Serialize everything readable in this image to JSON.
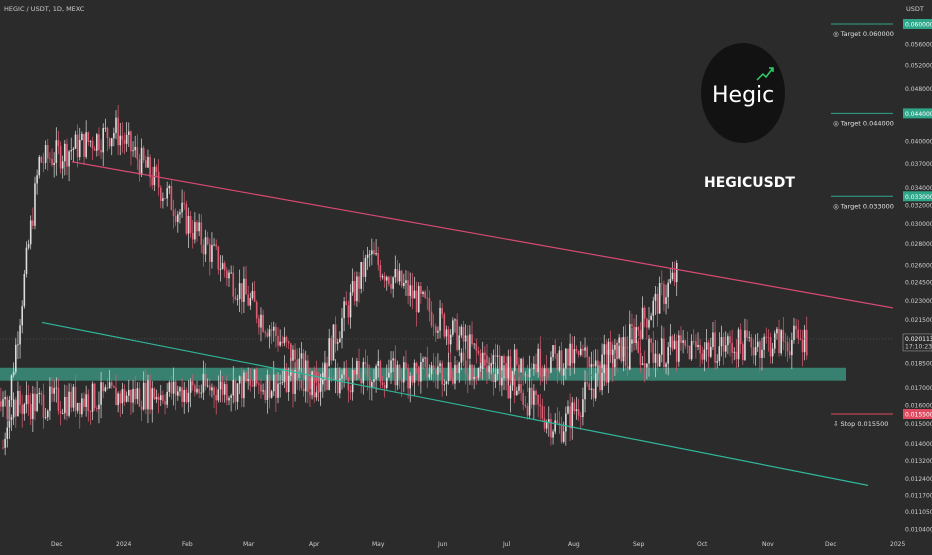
{
  "header": {
    "symbol_line": "HEGIC / USDT, 1D, MEXC",
    "currency": "USDT"
  },
  "colors": {
    "background": "#2b2b2b",
    "up": "#dcdcdc",
    "down": "#e05c72",
    "upper_trendline": "#d94a72",
    "lower_trendline": "#2fb79a",
    "support_zone": "#3b8f7c",
    "target_label": "#2fa68a",
    "stop_label": "#e04a60",
    "axis_text": "#d0d0d0"
  },
  "logo": {
    "text": "Hegic",
    "caption": "HEGICUSDT"
  },
  "chart_data": {
    "type": "candlestick",
    "title": "HEGIC / USDT, 1D, MEXC",
    "y_scale": "log",
    "ylim": [
      0.0103,
      0.061
    ],
    "price_ticks": [
      "0.060000",
      "0.056000",
      "0.052000",
      "0.048000",
      "0.044000",
      "0.040000",
      "0.037000",
      "0.034000",
      "0.032000",
      "0.030000",
      "0.028000",
      "0.026000",
      "0.024500",
      "0.023000",
      "0.021500",
      "0.020000",
      "0.018500",
      "0.017000",
      "0.016000",
      "0.015000",
      "0.014000",
      "0.013200",
      "0.012400",
      "0.011700",
      "0.011050",
      "0.010400"
    ],
    "x_labels": [
      "Dec",
      "2024",
      "Feb",
      "Mar",
      "Apr",
      "May",
      "Jun",
      "Jul",
      "Aug",
      "Sep",
      "Oct",
      "Nov",
      "Dec",
      "2025"
    ],
    "current_price": "0.020113",
    "countdown": "17:10:23",
    "key_points": [
      {
        "date": "Nov 20",
        "price": 0.0138
      },
      {
        "date": "Dec 5",
        "price": 0.0372
      },
      {
        "date": "Jan 10",
        "price": 0.0415
      },
      {
        "date": "Apr 12",
        "price": 0.0172
      },
      {
        "date": "May 8",
        "price": 0.0268
      },
      {
        "date": "Aug 5",
        "price": 0.0147
      },
      {
        "date": "Sep 30",
        "price": 0.0253
      },
      {
        "date": "Nov 1",
        "price": 0.0158
      },
      {
        "date": "Nov 30",
        "price": 0.0201
      }
    ],
    "upper_trendline": {
      "from": {
        "date": "Dec 5",
        "price": 0.0372
      },
      "to": {
        "date": "Dec 31",
        "price": 0.0224
      }
    },
    "lower_trendline": {
      "from": {
        "date": "Nov 30",
        "price": 0.0213
      },
      "to": {
        "date": "Dec 31",
        "price": 0.0121
      }
    },
    "support_zone": {
      "low": 0.0174,
      "high": 0.0182
    },
    "levels": [
      {
        "label": "Target 0.060000",
        "price": 0.06,
        "axis": "0.060000",
        "kind": "target"
      },
      {
        "label": "Target 0.044000",
        "price": 0.044,
        "axis": "0.044000",
        "kind": "target"
      },
      {
        "label": "Target 0.033000",
        "price": 0.033,
        "axis": "0.033000",
        "kind": "target"
      },
      {
        "label": "Stop 0.015500",
        "price": 0.0155,
        "axis": "0.015500",
        "kind": "stop"
      }
    ]
  }
}
